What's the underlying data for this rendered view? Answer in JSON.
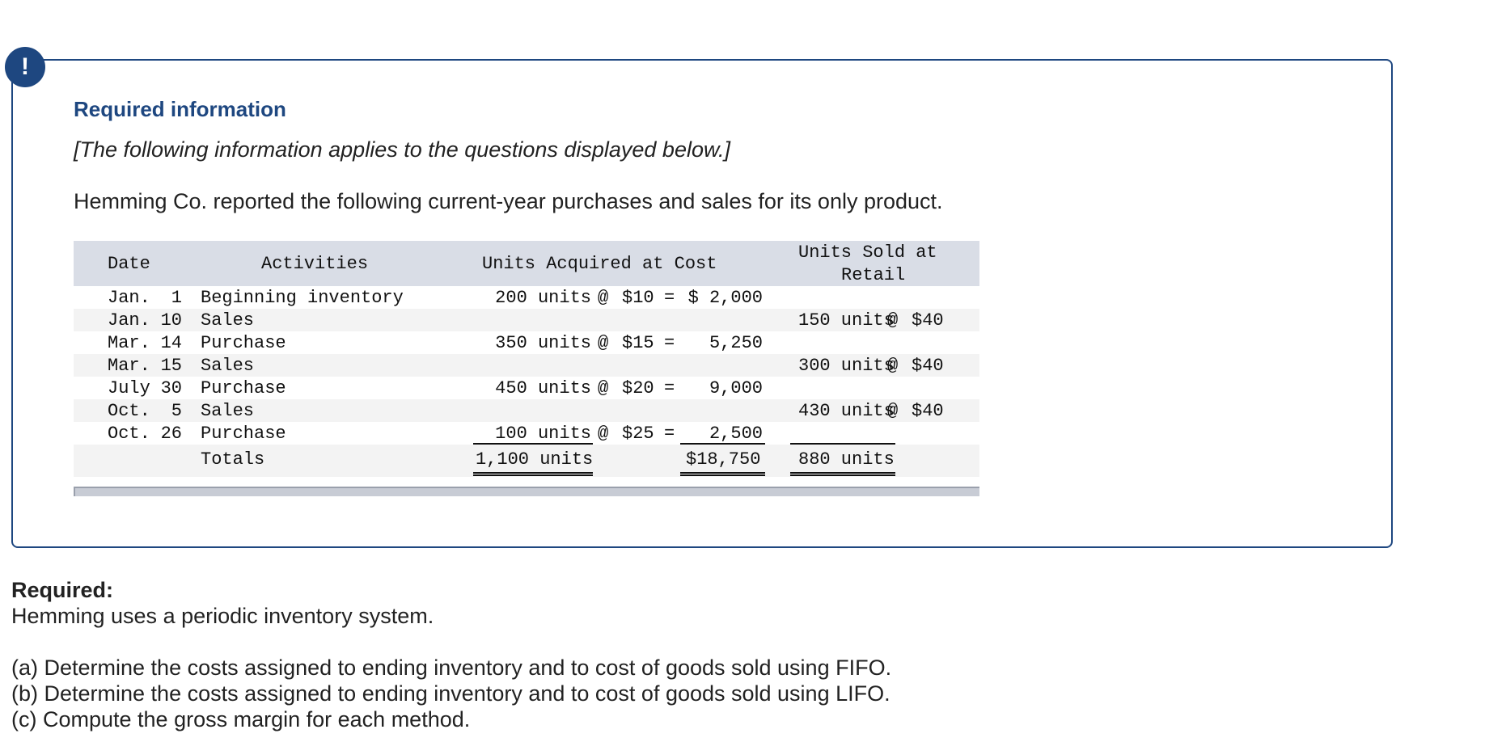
{
  "alert_icon": "!",
  "info": {
    "title": "Required information",
    "note": "[The following information applies to the questions displayed below.]",
    "intro": "Hemming Co. reported the following current-year purchases and sales for its only product."
  },
  "table": {
    "headers": {
      "date": "Date",
      "activities": "Activities",
      "acquired": "Units Acquired at Cost",
      "sold_line1": "Units Sold at",
      "sold_line2": "Retail"
    },
    "rows": [
      {
        "month": "Jan.",
        "day": "1",
        "activity": "Beginning inventory",
        "acq_units": "200 units",
        "acq_at": "@",
        "acq_price": "$10",
        "acq_eq": "=",
        "acq_cost": "$ 2,000",
        "sold_units": "",
        "sold_at": "",
        "sold_price": ""
      },
      {
        "month": "Jan.",
        "day": "10",
        "activity": "Sales",
        "acq_units": "",
        "acq_at": "",
        "acq_price": "",
        "acq_eq": "",
        "acq_cost": "",
        "sold_units": "150 units",
        "sold_at": "@",
        "sold_price": "$40"
      },
      {
        "month": "Mar.",
        "day": "14",
        "activity": "Purchase",
        "acq_units": "350 units",
        "acq_at": "@",
        "acq_price": "$15",
        "acq_eq": "=",
        "acq_cost": "5,250",
        "sold_units": "",
        "sold_at": "",
        "sold_price": ""
      },
      {
        "month": "Mar.",
        "day": "15",
        "activity": "Sales",
        "acq_units": "",
        "acq_at": "",
        "acq_price": "",
        "acq_eq": "",
        "acq_cost": "",
        "sold_units": "300 units",
        "sold_at": "@",
        "sold_price": "$40"
      },
      {
        "month": "July",
        "day": "30",
        "activity": "Purchase",
        "acq_units": "450 units",
        "acq_at": "@",
        "acq_price": "$20",
        "acq_eq": "=",
        "acq_cost": "9,000",
        "sold_units": "",
        "sold_at": "",
        "sold_price": ""
      },
      {
        "month": "Oct.",
        "day": "5",
        "activity": "Sales",
        "acq_units": "",
        "acq_at": "",
        "acq_price": "",
        "acq_eq": "",
        "acq_cost": "",
        "sold_units": "430 units",
        "sold_at": "@",
        "sold_price": "$40"
      },
      {
        "month": "Oct.",
        "day": "26",
        "activity": "Purchase",
        "acq_units": "100 units",
        "acq_at": "@",
        "acq_price": "$25",
        "acq_eq": "=",
        "acq_cost": "2,500",
        "sold_units": "",
        "sold_at": "",
        "sold_price": ""
      }
    ],
    "totals": {
      "label": "Totals",
      "acq_units": "1,100 units",
      "acq_cost": "$18,750",
      "sold_units": "880 units"
    }
  },
  "required": {
    "label": "Required:",
    "description": "Hemming uses a periodic inventory system.",
    "questions": [
      "(a) Determine the costs assigned to ending inventory and to cost of goods sold using FIFO.",
      "(b) Determine the costs assigned to ending inventory and to cost of goods sold using LIFO.",
      "(c) Compute the gross margin for each method."
    ]
  }
}
